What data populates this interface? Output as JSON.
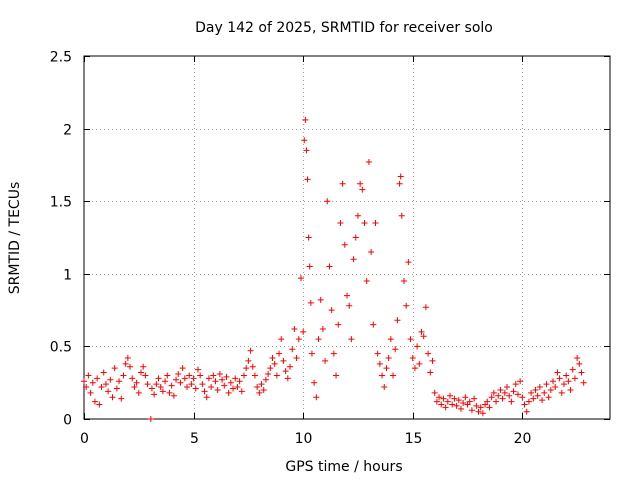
{
  "chart_data": {
    "type": "scatter",
    "title": "Day 142 of 2025, SRMTID for receiver solo",
    "xlabel": "GPS time / hours",
    "ylabel": "SRMTID / TECUs",
    "xlim": [
      0,
      24
    ],
    "ylim": [
      0,
      2.5
    ],
    "xticks": [
      0,
      5,
      10,
      15,
      20
    ],
    "yticks": [
      0,
      0.5,
      1,
      1.5,
      2,
      2.5
    ],
    "xtick_labels": [
      "0",
      "5",
      "10",
      "15",
      "20"
    ],
    "ytick_labels": [
      "0",
      "0.5",
      "1",
      "1.5",
      "2",
      "2.5"
    ],
    "grid": true,
    "marker": "+",
    "color": "#ff0000",
    "series": [
      {
        "name": "SRMTID",
        "points": [
          [
            0.0,
            0.26
          ],
          [
            0.1,
            0.22
          ],
          [
            0.2,
            0.3
          ],
          [
            0.3,
            0.18
          ],
          [
            0.4,
            0.25
          ],
          [
            0.5,
            0.12
          ],
          [
            0.6,
            0.28
          ],
          [
            0.7,
            0.1
          ],
          [
            0.8,
            0.22
          ],
          [
            0.9,
            0.32
          ],
          [
            1.0,
            0.24
          ],
          [
            1.1,
            0.19
          ],
          [
            1.2,
            0.27
          ],
          [
            1.3,
            0.15
          ],
          [
            1.4,
            0.35
          ],
          [
            1.5,
            0.21
          ],
          [
            1.6,
            0.26
          ],
          [
            1.7,
            0.14
          ],
          [
            1.8,
            0.3
          ],
          [
            1.9,
            0.38
          ],
          [
            2.0,
            0.42
          ],
          [
            2.1,
            0.36
          ],
          [
            2.2,
            0.28
          ],
          [
            2.3,
            0.22
          ],
          [
            2.4,
            0.25
          ],
          [
            2.5,
            0.18
          ],
          [
            2.6,
            0.32
          ],
          [
            2.7,
            0.36
          ],
          [
            2.8,
            0.3
          ],
          [
            2.9,
            0.24
          ],
          [
            3.05,
            0.0
          ],
          [
            3.1,
            0.21
          ],
          [
            3.2,
            0.17
          ],
          [
            3.3,
            0.24
          ],
          [
            3.4,
            0.28
          ],
          [
            3.5,
            0.22
          ],
          [
            3.6,
            0.19
          ],
          [
            3.7,
            0.26
          ],
          [
            3.8,
            0.3
          ],
          [
            3.9,
            0.18
          ],
          [
            4.0,
            0.23
          ],
          [
            4.1,
            0.16
          ],
          [
            4.2,
            0.27
          ],
          [
            4.3,
            0.31
          ],
          [
            4.4,
            0.25
          ],
          [
            4.5,
            0.35
          ],
          [
            4.6,
            0.28
          ],
          [
            4.7,
            0.22
          ],
          [
            4.8,
            0.3
          ],
          [
            4.9,
            0.24
          ],
          [
            5.0,
            0.28
          ],
          [
            5.1,
            0.21
          ],
          [
            5.2,
            0.34
          ],
          [
            5.3,
            0.3
          ],
          [
            5.4,
            0.24
          ],
          [
            5.5,
            0.19
          ],
          [
            5.6,
            0.15
          ],
          [
            5.7,
            0.28
          ],
          [
            5.8,
            0.22
          ],
          [
            5.9,
            0.3
          ],
          [
            6.0,
            0.26
          ],
          [
            6.1,
            0.2
          ],
          [
            6.2,
            0.31
          ],
          [
            6.3,
            0.27
          ],
          [
            6.4,
            0.23
          ],
          [
            6.5,
            0.29
          ],
          [
            6.6,
            0.18
          ],
          [
            6.7,
            0.25
          ],
          [
            6.8,
            0.21
          ],
          [
            6.9,
            0.28
          ],
          [
            7.0,
            0.22
          ],
          [
            7.1,
            0.26
          ],
          [
            7.2,
            0.19
          ],
          [
            7.3,
            0.3
          ],
          [
            7.4,
            0.35
          ],
          [
            7.5,
            0.4
          ],
          [
            7.6,
            0.47
          ],
          [
            7.7,
            0.36
          ],
          [
            7.8,
            0.3
          ],
          [
            7.9,
            0.22
          ],
          [
            8.0,
            0.18
          ],
          [
            8.1,
            0.24
          ],
          [
            8.2,
            0.2
          ],
          [
            8.3,
            0.27
          ],
          [
            8.4,
            0.31
          ],
          [
            8.5,
            0.35
          ],
          [
            8.6,
            0.42
          ],
          [
            8.7,
            0.38
          ],
          [
            8.8,
            0.3
          ],
          [
            8.9,
            0.45
          ],
          [
            9.0,
            0.55
          ],
          [
            9.1,
            0.4
          ],
          [
            9.2,
            0.33
          ],
          [
            9.3,
            0.28
          ],
          [
            9.4,
            0.36
          ],
          [
            9.5,
            0.48
          ],
          [
            9.6,
            0.62
          ],
          [
            9.7,
            0.42
          ],
          [
            9.8,
            0.55
          ],
          [
            9.9,
            0.97
          ],
          [
            10.0,
            0.6
          ],
          [
            10.05,
            1.92
          ],
          [
            10.1,
            2.06
          ],
          [
            10.15,
            1.85
          ],
          [
            10.2,
            1.65
          ],
          [
            10.25,
            1.25
          ],
          [
            10.3,
            1.05
          ],
          [
            10.35,
            0.8
          ],
          [
            10.4,
            0.45
          ],
          [
            10.5,
            0.25
          ],
          [
            10.6,
            0.15
          ],
          [
            10.7,
            0.55
          ],
          [
            10.8,
            0.82
          ],
          [
            10.9,
            0.62
          ],
          [
            11.0,
            0.4
          ],
          [
            11.1,
            1.5
          ],
          [
            11.2,
            1.05
          ],
          [
            11.3,
            0.75
          ],
          [
            11.4,
            0.45
          ],
          [
            11.5,
            0.3
          ],
          [
            11.6,
            0.65
          ],
          [
            11.7,
            1.35
          ],
          [
            11.8,
            1.62
          ],
          [
            11.9,
            1.2
          ],
          [
            12.0,
            0.85
          ],
          [
            12.1,
            0.78
          ],
          [
            12.2,
            0.55
          ],
          [
            12.3,
            1.1
          ],
          [
            12.4,
            1.25
          ],
          [
            12.5,
            1.4
          ],
          [
            12.6,
            1.62
          ],
          [
            12.7,
            1.58
          ],
          [
            12.8,
            1.35
          ],
          [
            12.9,
            0.95
          ],
          [
            13.0,
            1.77
          ],
          [
            13.1,
            1.15
          ],
          [
            13.2,
            0.65
          ],
          [
            13.3,
            1.35
          ],
          [
            13.4,
            0.45
          ],
          [
            13.5,
            0.38
          ],
          [
            13.6,
            0.3
          ],
          [
            13.7,
            0.22
          ],
          [
            13.8,
            0.35
          ],
          [
            13.9,
            0.42
          ],
          [
            14.0,
            0.55
          ],
          [
            14.1,
            0.3
          ],
          [
            14.2,
            0.48
          ],
          [
            14.3,
            0.68
          ],
          [
            14.4,
            1.62
          ],
          [
            14.45,
            1.67
          ],
          [
            14.5,
            1.4
          ],
          [
            14.6,
            0.95
          ],
          [
            14.7,
            0.78
          ],
          [
            14.8,
            1.08
          ],
          [
            14.9,
            0.55
          ],
          [
            15.0,
            0.42
          ],
          [
            15.1,
            0.35
          ],
          [
            15.2,
            0.5
          ],
          [
            15.3,
            0.38
          ],
          [
            15.4,
            0.6
          ],
          [
            15.5,
            0.57
          ],
          [
            15.6,
            0.77
          ],
          [
            15.7,
            0.45
          ],
          [
            15.8,
            0.32
          ],
          [
            15.9,
            0.4
          ],
          [
            16.0,
            0.18
          ],
          [
            16.1,
            0.12
          ],
          [
            16.2,
            0.15
          ],
          [
            16.3,
            0.1
          ],
          [
            16.4,
            0.14
          ],
          [
            16.5,
            0.08
          ],
          [
            16.6,
            0.12
          ],
          [
            16.7,
            0.16
          ],
          [
            16.8,
            0.1
          ],
          [
            16.9,
            0.14
          ],
          [
            17.0,
            0.09
          ],
          [
            17.1,
            0.13
          ],
          [
            17.2,
            0.07
          ],
          [
            17.3,
            0.11
          ],
          [
            17.4,
            0.15
          ],
          [
            17.5,
            0.1
          ],
          [
            17.6,
            0.12
          ],
          [
            17.7,
            0.06
          ],
          [
            17.8,
            0.14
          ],
          [
            17.9,
            0.09
          ],
          [
            18.0,
            0.05
          ],
          [
            18.1,
            0.08
          ],
          [
            18.2,
            0.04
          ],
          [
            18.3,
            0.1
          ],
          [
            18.4,
            0.12
          ],
          [
            18.5,
            0.08
          ],
          [
            18.6,
            0.15
          ],
          [
            18.7,
            0.18
          ],
          [
            18.8,
            0.12
          ],
          [
            18.9,
            0.16
          ],
          [
            19.0,
            0.2
          ],
          [
            19.1,
            0.14
          ],
          [
            19.2,
            0.18
          ],
          [
            19.3,
            0.22
          ],
          [
            19.4,
            0.16
          ],
          [
            19.5,
            0.12
          ],
          [
            19.6,
            0.19
          ],
          [
            19.7,
            0.24
          ],
          [
            19.8,
            0.17
          ],
          [
            19.9,
            0.26
          ],
          [
            20.0,
            0.15
          ],
          [
            20.1,
            0.1
          ],
          [
            20.2,
            0.05
          ],
          [
            20.3,
            0.12
          ],
          [
            20.4,
            0.18
          ],
          [
            20.5,
            0.14
          ],
          [
            20.6,
            0.2
          ],
          [
            20.7,
            0.16
          ],
          [
            20.8,
            0.22
          ],
          [
            20.9,
            0.13
          ],
          [
            21.0,
            0.18
          ],
          [
            21.1,
            0.24
          ],
          [
            21.2,
            0.15
          ],
          [
            21.3,
            0.2
          ],
          [
            21.4,
            0.26
          ],
          [
            21.5,
            0.22
          ],
          [
            21.6,
            0.32
          ],
          [
            21.7,
            0.28
          ],
          [
            21.8,
            0.18
          ],
          [
            21.9,
            0.24
          ],
          [
            22.0,
            0.3
          ],
          [
            22.1,
            0.26
          ],
          [
            22.2,
            0.2
          ],
          [
            22.3,
            0.34
          ],
          [
            22.4,
            0.28
          ],
          [
            22.5,
            0.42
          ],
          [
            22.6,
            0.38
          ],
          [
            22.7,
            0.32
          ],
          [
            22.8,
            0.25
          ]
        ]
      }
    ]
  }
}
